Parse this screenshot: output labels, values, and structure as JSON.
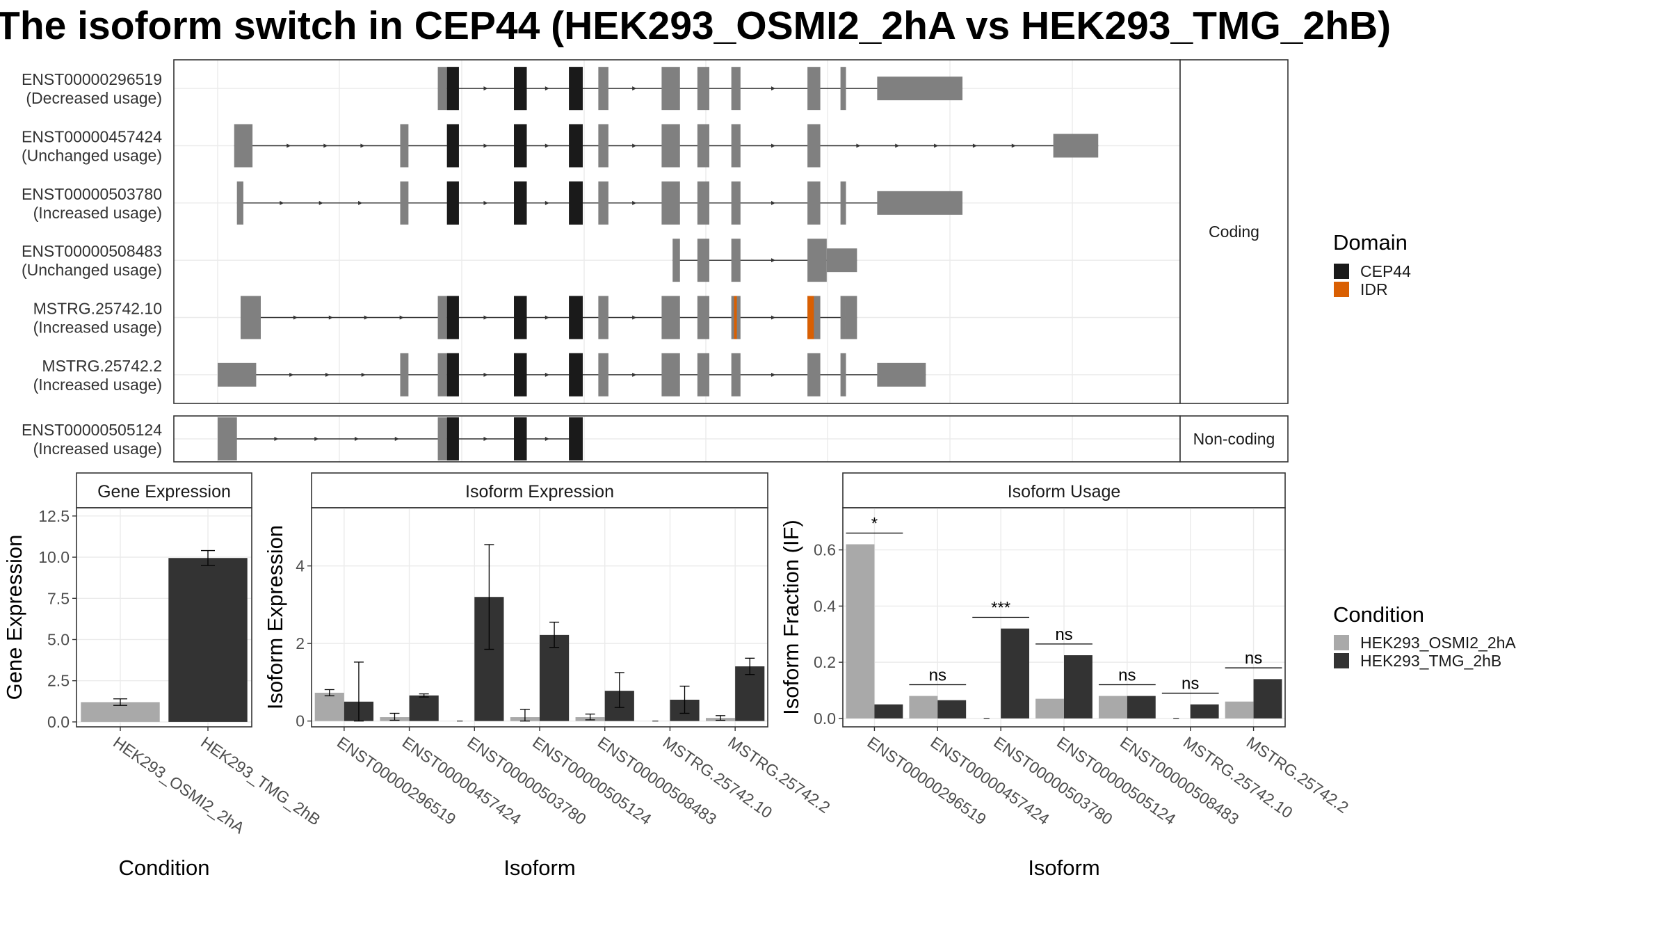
{
  "title": "The isoform switch in CEP44 (HEK293_OSMI2_2hA vs HEK293_TMG_2hB)",
  "colors": {
    "exon": "#808080",
    "cep44": "#1a1a1a",
    "idr": "#d95f02",
    "cond_a": "#a9a9a9",
    "cond_b": "#333333",
    "grid": "#ebebeb",
    "strip": "#ffffff",
    "line": "#333333"
  },
  "chart_data": [
    {
      "type": "gene-structure",
      "panels": [
        {
          "strip": "Coding",
          "transcripts": [
            {
              "id": "ENST00000296519",
              "note": "(Decreased usage)",
              "cep44": true,
              "idr": false,
              "exons": [
                [
                  0.24,
                  0.25
                ],
                [
                  0.25,
                  0.263
                ],
                [
                  0.323,
                  0.337
                ],
                [
                  0.383,
                  0.398
                ],
                [
                  0.415,
                  0.426
                ],
                [
                  0.484,
                  0.504
                ],
                [
                  0.523,
                  0.536
                ],
                [
                  0.56,
                  0.57
                ],
                [
                  0.643,
                  0.657
                ],
                [
                  0.679,
                  0.685
                ],
                [
                  0.719,
                  0.812
                ]
              ]
            },
            {
              "id": "ENST00000457424",
              "note": "(Unchanged usage)",
              "cep44": true,
              "idr": false,
              "exons": [
                [
                  0.018,
                  0.038
                ],
                [
                  0.199,
                  0.208
                ],
                [
                  0.25,
                  0.263
                ],
                [
                  0.323,
                  0.337
                ],
                [
                  0.383,
                  0.398
                ],
                [
                  0.415,
                  0.426
                ],
                [
                  0.484,
                  0.504
                ],
                [
                  0.523,
                  0.536
                ],
                [
                  0.56,
                  0.57
                ],
                [
                  0.643,
                  0.657
                ],
                [
                  0.911,
                  0.96
                ]
              ]
            },
            {
              "id": "ENST00000503780",
              "note": "(Increased usage)",
              "cep44": true,
              "idr": false,
              "exons": [
                [
                  0.021,
                  0.028
                ],
                [
                  0.199,
                  0.208
                ],
                [
                  0.25,
                  0.263
                ],
                [
                  0.323,
                  0.337
                ],
                [
                  0.383,
                  0.398
                ],
                [
                  0.415,
                  0.426
                ],
                [
                  0.484,
                  0.504
                ],
                [
                  0.523,
                  0.536
                ],
                [
                  0.56,
                  0.57
                ],
                [
                  0.643,
                  0.657
                ],
                [
                  0.679,
                  0.685
                ],
                [
                  0.719,
                  0.812
                ]
              ]
            },
            {
              "id": "ENST00000508483",
              "note": "(Unchanged usage)",
              "cep44": false,
              "idr": false,
              "exons": [
                [
                  0.496,
                  0.504
                ],
                [
                  0.523,
                  0.536
                ],
                [
                  0.56,
                  0.57
                ],
                [
                  0.643,
                  0.664
                ],
                [
                  0.664,
                  0.697
                ]
              ]
            },
            {
              "id": "MSTRG.25742.10",
              "note": "(Increased usage)",
              "cep44": true,
              "idr": true,
              "exons": [
                [
                  0.025,
                  0.047
                ],
                [
                  0.24,
                  0.25
                ],
                [
                  0.25,
                  0.263
                ],
                [
                  0.323,
                  0.337
                ],
                [
                  0.383,
                  0.398
                ],
                [
                  0.415,
                  0.426
                ],
                [
                  0.484,
                  0.504
                ],
                [
                  0.523,
                  0.536
                ],
                [
                  0.56,
                  0.57
                ],
                [
                  0.643,
                  0.657
                ],
                [
                  0.679,
                  0.685
                ],
                [
                  0.685,
                  0.697
                ]
              ]
            },
            {
              "id": "MSTRG.25742.2",
              "note": "(Increased usage)",
              "cep44": true,
              "idr": false,
              "exons": [
                [
                  0.0,
                  0.042
                ],
                [
                  0.199,
                  0.208
                ],
                [
                  0.24,
                  0.25
                ],
                [
                  0.25,
                  0.263
                ],
                [
                  0.323,
                  0.337
                ],
                [
                  0.383,
                  0.398
                ],
                [
                  0.415,
                  0.426
                ],
                [
                  0.484,
                  0.504
                ],
                [
                  0.523,
                  0.536
                ],
                [
                  0.56,
                  0.57
                ],
                [
                  0.643,
                  0.657
                ],
                [
                  0.679,
                  0.685
                ],
                [
                  0.719,
                  0.772
                ]
              ]
            }
          ]
        },
        {
          "strip": "Non-coding",
          "transcripts": [
            {
              "id": "ENST00000505124",
              "note": "(Increased usage)",
              "cep44": true,
              "idr": false,
              "exons": [
                [
                  0.0,
                  0.021
                ],
                [
                  0.24,
                  0.25
                ],
                [
                  0.25,
                  0.263
                ],
                [
                  0.323,
                  0.337
                ],
                [
                  0.383,
                  0.398
                ]
              ]
            }
          ]
        }
      ],
      "legend": {
        "title": "Domain",
        "items": [
          "CEP44",
          "IDR"
        ]
      }
    },
    {
      "type": "bar",
      "strip": "Gene Expression",
      "xlabel": "Condition",
      "ylabel": "Gene Expression",
      "categories": [
        "HEK293_OSMI2_2hA",
        "HEK293_TMG_2hB"
      ],
      "values": [
        1.2,
        9.95
      ],
      "errors": [
        [
          1.0,
          1.4
        ],
        [
          9.5,
          10.4
        ]
      ],
      "ylim": [
        -0.3,
        13.0
      ],
      "yticks": [
        "0.0",
        "2.5",
        "5.0",
        "7.5",
        "10.0",
        "12.5"
      ]
    },
    {
      "type": "bar",
      "strip": "Isoform Expression",
      "xlabel": "Isoform",
      "ylabel": "Isoform Expression",
      "categories": [
        "ENST00000296519",
        "ENST00000457424",
        "ENST00000503780",
        "ENST00000505124",
        "ENST00000508483",
        "MSTRG.25742.10",
        "MSTRG.25742.2"
      ],
      "series": [
        {
          "name": "HEK293_OSMI2_2hA",
          "values": [
            0.73,
            0.1,
            0.0,
            0.1,
            0.1,
            0.0,
            0.08
          ],
          "errors": [
            [
              0.65,
              0.81
            ],
            [
              0.02,
              0.2
            ],
            [
              0.0,
              0.0
            ],
            [
              0.0,
              0.3
            ],
            [
              0.03,
              0.18
            ],
            [
              0.0,
              0.0
            ],
            [
              0.02,
              0.14
            ]
          ]
        },
        {
          "name": "HEK293_TMG_2hB",
          "values": [
            0.5,
            0.66,
            3.2,
            2.22,
            0.78,
            0.55,
            1.41
          ],
          "errors": [
            [
              0.0,
              1.52
            ],
            [
              0.62,
              0.7
            ],
            [
              1.85,
              4.55
            ],
            [
              1.9,
              2.55
            ],
            [
              0.35,
              1.25
            ],
            [
              0.2,
              0.9
            ],
            [
              1.2,
              1.62
            ]
          ]
        }
      ],
      "ylim": [
        -0.15,
        5.5
      ],
      "yticks": [
        "0",
        "2",
        "4"
      ]
    },
    {
      "type": "bar",
      "strip": "Isoform Usage",
      "xlabel": "Isoform",
      "ylabel": "Isoform Fraction (IF)",
      "categories": [
        "ENST00000296519",
        "ENST00000457424",
        "ENST00000503780",
        "ENST00000505124",
        "ENST00000508483",
        "MSTRG.25742.10",
        "MSTRG.25742.2"
      ],
      "series": [
        {
          "name": "HEK293_OSMI2_2hA",
          "values": [
            0.62,
            0.08,
            0.0,
            0.07,
            0.08,
            0.0,
            0.06
          ]
        },
        {
          "name": "HEK293_TMG_2hB",
          "values": [
            0.05,
            0.065,
            0.32,
            0.225,
            0.08,
            0.05,
            0.14
          ]
        }
      ],
      "significance": [
        "*",
        "ns",
        "***",
        "ns",
        "ns",
        "ns",
        "ns"
      ],
      "ylim": [
        -0.03,
        0.75
      ],
      "yticks": [
        "0.0",
        "0.2",
        "0.4",
        "0.6"
      ]
    }
  ],
  "condition_legend": {
    "title": "Condition",
    "items": [
      "HEK293_OSMI2_2hA",
      "HEK293_TMG_2hB"
    ]
  }
}
